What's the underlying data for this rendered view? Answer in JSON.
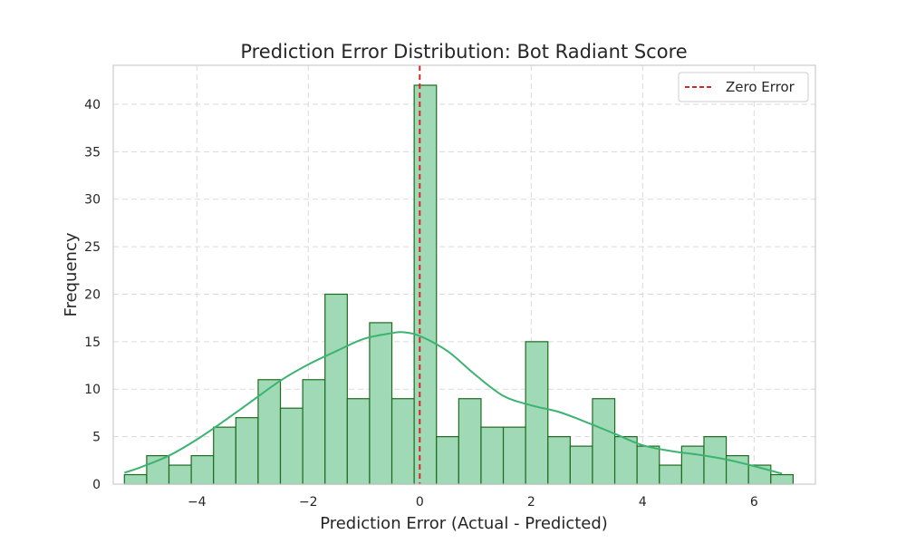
{
  "chart_data": {
    "type": "bar",
    "title": "Prediction Error Distribution: Bot Radiant Score",
    "xlabel": "Prediction Error (Actual - Predicted)",
    "ylabel": "Frequency",
    "xlim": [
      -5.5,
      7.1
    ],
    "ylim": [
      0,
      44.1
    ],
    "x_ticks": [
      -4,
      -2,
      0,
      2,
      4,
      6
    ],
    "x_tick_labels": [
      "−4",
      "−2",
      "0",
      "2",
      "4",
      "6"
    ],
    "y_ticks": [
      0,
      5,
      10,
      15,
      20,
      25,
      30,
      35,
      40
    ],
    "y_tick_labels": [
      "0",
      "5",
      "10",
      "15",
      "20",
      "25",
      "30",
      "35",
      "40"
    ],
    "grid": true,
    "legend": {
      "placement": "top-right",
      "entries": [
        {
          "label": "Zero Error",
          "style": "dashed-line",
          "color": "#d62728"
        }
      ]
    },
    "bins": {
      "start": -5.3,
      "width": 0.4,
      "counts": [
        1,
        3,
        2,
        3,
        6,
        7,
        11,
        8,
        11,
        20,
        9,
        17,
        9,
        42,
        5,
        9,
        6,
        6,
        15,
        5,
        4,
        9,
        5,
        4,
        2,
        4,
        5,
        3,
        2,
        1
      ]
    },
    "kde": {
      "x": [
        -5.3,
        -5.0,
        -4.5,
        -4.0,
        -3.5,
        -3.0,
        -2.5,
        -2.0,
        -1.5,
        -1.0,
        -0.5,
        -0.3,
        0.0,
        0.5,
        1.0,
        1.5,
        2.0,
        2.5,
        3.0,
        3.5,
        4.0,
        4.5,
        5.0,
        5.5,
        6.0,
        6.5
      ],
      "y": [
        1.2,
        1.8,
        3.0,
        4.7,
        6.7,
        8.8,
        10.9,
        12.6,
        14.0,
        15.3,
        15.9,
        16.0,
        15.6,
        14.0,
        11.5,
        9.3,
        8.3,
        7.6,
        6.5,
        5.3,
        4.1,
        3.5,
        3.1,
        2.6,
        1.9,
        1.1
      ]
    },
    "reference_line": {
      "x": 0,
      "label": "Zero Error",
      "color": "#d62728"
    },
    "colors": {
      "bar_fill": "#a0d9b5",
      "bar_edge": "#1e6b1e",
      "kde": "#3cb371",
      "grid": "#d9d9d9",
      "spine": "#cccccc"
    }
  }
}
